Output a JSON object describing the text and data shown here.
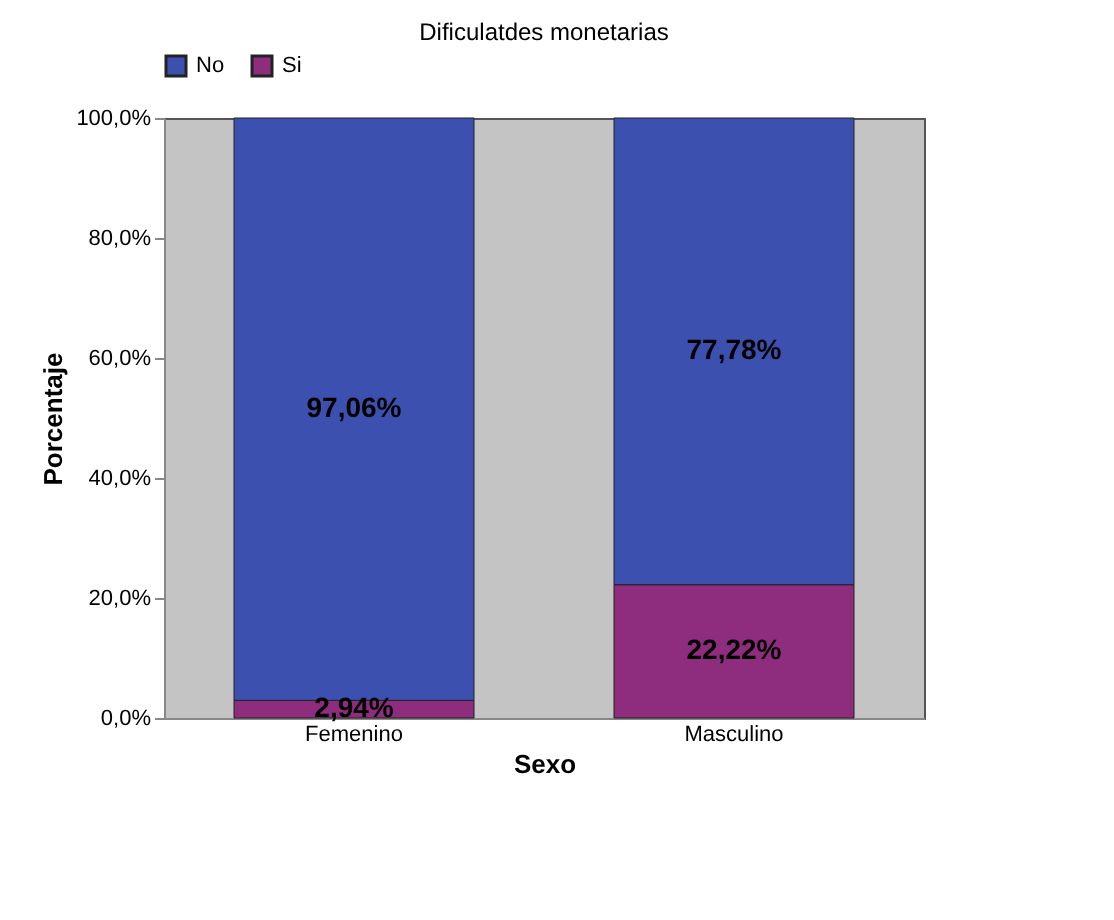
{
  "chart_data": {
    "type": "bar",
    "title": "Dificulatdes monetarias",
    "xlabel": "Sexo",
    "ylabel": "Porcentaje",
    "categories": [
      "Femenino",
      "Masculino"
    ],
    "stacked": true,
    "series": [
      {
        "name": "Si",
        "color": "#8e2c7e",
        "values": [
          2.94,
          22.22
        ],
        "value_labels": [
          "2,94%",
          "22,22%"
        ]
      },
      {
        "name": "No",
        "color": "#3c50b0",
        "values": [
          97.06,
          77.78
        ],
        "value_labels": [
          "97,06%",
          "77,78%"
        ]
      }
    ],
    "ylim": [
      0,
      100
    ],
    "yticks": [
      {
        "value": 0,
        "label": "0,0%"
      },
      {
        "value": 20,
        "label": "20,0%"
      },
      {
        "value": 40,
        "label": "40,0%"
      },
      {
        "value": 60,
        "label": "60,0%"
      },
      {
        "value": 80,
        "label": "80,0%"
      },
      {
        "value": 100,
        "label": "100,0%"
      }
    ],
    "grid": false,
    "legend": "top"
  }
}
